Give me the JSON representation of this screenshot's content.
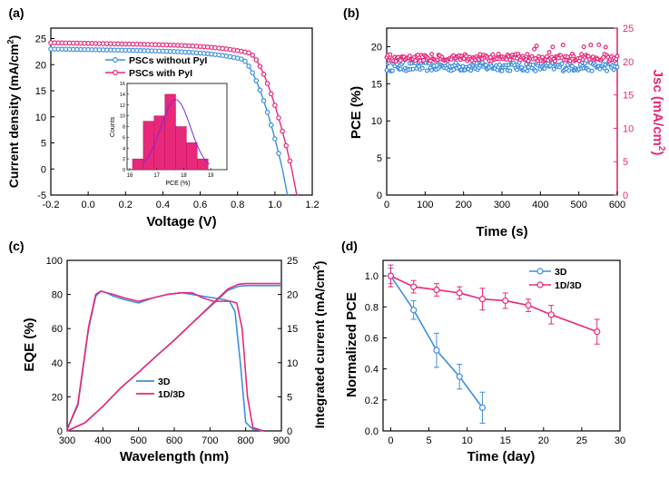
{
  "colors": {
    "blue": "#3d8fe0",
    "pink": "#e8287a",
    "axis": "#000000",
    "bar": "#e8287a",
    "fit": "#7a2be2"
  },
  "chart_data": [
    {
      "panel": "a",
      "panel_label": "(a)",
      "type": "line",
      "xlabel": "Voltage (V)",
      "ylabel": "Current density (mA/cm²)",
      "ylabel_main": "Current density (mA/cm",
      "ylabel_sup": "2",
      "ylabel_end": ")",
      "xlim": [
        -0.2,
        1.2
      ],
      "ylim": [
        -5,
        27
      ],
      "xticks": [
        "-0.2",
        "0.0",
        "0.2",
        "0.4",
        "0.6",
        "0.8",
        "1.0",
        "1.2"
      ],
      "xtick_values": [
        -0.2,
        0.0,
        0.2,
        0.4,
        0.6,
        0.8,
        1.0,
        1.2
      ],
      "yticks": [
        "-5",
        "0",
        "5",
        "10",
        "15",
        "20",
        "25"
      ],
      "ytick_values": [
        -5,
        0,
        5,
        10,
        15,
        20,
        25
      ],
      "series": [
        {
          "name": "PSCs without PyI",
          "color": "#3d8fe0",
          "jsc": 23.0,
          "voc": 1.04,
          "knee": 0.82,
          "step": 0.02
        },
        {
          "name": "PSCs with PyI",
          "color": "#e8287a",
          "jsc": 24.2,
          "voc": 1.09,
          "knee": 0.86,
          "step": 0.02
        }
      ],
      "legend": [
        "PSCs without PyI",
        "PSCs with PyI"
      ],
      "inset": {
        "type": "bar",
        "xlabel": "PCE (%)",
        "ylabel": "Counts",
        "xlim": [
          15.9,
          19.6
        ],
        "ylim": [
          0,
          16
        ],
        "xticks": [
          "16",
          "17",
          "18",
          "19"
        ],
        "xtick_values": [
          16,
          17,
          18,
          19
        ],
        "yticks": [
          "0",
          "2",
          "4",
          "6",
          "8",
          "10",
          "12",
          "14",
          "16"
        ],
        "ytick_values": [
          0,
          2,
          4,
          6,
          8,
          10,
          12,
          14,
          16
        ],
        "bins": [
          16.3,
          16.7,
          17.1,
          17.5,
          17.9,
          18.3,
          18.7,
          19.1
        ],
        "counts": [
          2,
          9,
          10,
          14,
          8,
          5,
          2,
          0
        ],
        "bin_width": 0.4,
        "fit": {
          "mean": 17.7,
          "sd": 0.55,
          "peak": 13
        }
      }
    },
    {
      "panel": "b",
      "panel_label": "(b)",
      "type": "scatter",
      "xlabel": "Time (s)",
      "ylabel": "PCE (%)",
      "y2label": "Jsc (mA/cm²)",
      "y2label_main": "Jsc (mA/cm",
      "y2label_sup": "2",
      "y2label_end": ")",
      "xlim": [
        0,
        600
      ],
      "ylim": [
        0,
        22.5
      ],
      "y2lim": [
        0,
        25
      ],
      "xticks": [
        "0",
        "100",
        "200",
        "300",
        "400",
        "500",
        "600"
      ],
      "xtick_values": [
        0,
        100,
        200,
        300,
        400,
        500,
        600
      ],
      "yticks": [
        "0",
        "5",
        "10",
        "15",
        "20"
      ],
      "ytick_values": [
        0,
        5,
        10,
        15,
        20
      ],
      "y2ticks": [
        "0",
        "5",
        "10",
        "15",
        "20",
        "25"
      ],
      "y2tick_values": [
        0,
        5,
        10,
        15,
        20,
        25
      ],
      "series": [
        {
          "name": "PCE",
          "axis": "left",
          "color": "#3d8fe0",
          "mean": 17.3,
          "spread": 0.6
        },
        {
          "name": "Jsc",
          "axis": "right",
          "color": "#e8287a",
          "mean": 20.6,
          "spread": 0.55
        }
      ]
    },
    {
      "panel": "c",
      "panel_label": "(c)",
      "type": "line",
      "xlabel": "Wavelength (nm)",
      "ylabel": "EQE (%)",
      "y2label": "Integrated current (mA/cm²)",
      "y2label_main": "Integrated current (mA/cm",
      "y2label_sup": "2",
      "y2label_end": ")",
      "xlim": [
        300,
        900
      ],
      "ylim": [
        0,
        100
      ],
      "y2lim": [
        0,
        25
      ],
      "xticks": [
        "300",
        "400",
        "500",
        "600",
        "700",
        "800",
        "900"
      ],
      "xtick_values": [
        300,
        400,
        500,
        600,
        700,
        800,
        900
      ],
      "yticks": [
        "0",
        "20",
        "40",
        "60",
        "80",
        "100"
      ],
      "ytick_values": [
        0,
        20,
        40,
        60,
        80,
        100
      ],
      "y2ticks": [
        "0",
        "5",
        "10",
        "15",
        "20",
        "25"
      ],
      "y2tick_values": [
        0,
        5,
        10,
        15,
        20,
        25
      ],
      "series": [
        {
          "name": "3D",
          "color": "#3d8fe0",
          "eqe_x": [
            300,
            330,
            360,
            380,
            395,
            410,
            430,
            460,
            500,
            540,
            580,
            620,
            650,
            680,
            710,
            740,
            755,
            770,
            785,
            800,
            820,
            850
          ],
          "eqe_y": [
            1,
            15,
            60,
            79,
            82,
            81,
            79,
            77,
            75,
            78,
            80,
            81,
            80,
            79,
            78,
            77,
            76,
            70,
            40,
            5,
            1,
            0
          ],
          "int_x": [
            300,
            350,
            400,
            450,
            500,
            550,
            600,
            650,
            700,
            750,
            780,
            800,
            850,
            900
          ],
          "int_y": [
            0,
            1.2,
            3.6,
            6.3,
            8.6,
            11.0,
            13.3,
            15.8,
            18.2,
            20.6,
            21.2,
            21.3,
            21.3,
            21.3
          ]
        },
        {
          "name": "1D/3D",
          "color": "#e8287a",
          "eqe_x": [
            300,
            330,
            360,
            380,
            395,
            410,
            430,
            460,
            500,
            540,
            580,
            620,
            650,
            680,
            710,
            740,
            760,
            775,
            790,
            805,
            820,
            850
          ],
          "eqe_y": [
            1,
            16,
            61,
            80,
            82,
            81,
            80,
            78,
            76,
            78,
            80,
            81,
            81,
            78,
            76,
            76,
            76,
            75,
            60,
            20,
            2,
            0
          ],
          "int_x": [
            300,
            350,
            400,
            450,
            500,
            550,
            600,
            650,
            700,
            750,
            780,
            800,
            850,
            900
          ],
          "int_y": [
            0,
            1.2,
            3.6,
            6.3,
            8.6,
            11.0,
            13.3,
            15.8,
            18.3,
            20.8,
            21.5,
            21.6,
            21.6,
            21.6
          ]
        }
      ],
      "legend": [
        "3D",
        "1D/3D"
      ]
    },
    {
      "panel": "d",
      "panel_label": "(d)",
      "type": "line",
      "xlabel": "Time (day)",
      "ylabel": "Normalized PCE",
      "xlim": [
        -1,
        30
      ],
      "ylim": [
        0,
        1.1
      ],
      "xticks": [
        "0",
        "5",
        "10",
        "15",
        "20",
        "25",
        "30"
      ],
      "xtick_values": [
        0,
        5,
        10,
        15,
        20,
        25,
        30
      ],
      "yticks": [
        "0.0",
        "0.2",
        "0.4",
        "0.6",
        "0.8",
        "1.0"
      ],
      "ytick_values": [
        0,
        0.2,
        0.4,
        0.6,
        0.8,
        1.0
      ],
      "series": [
        {
          "name": "3D",
          "color": "#3d8fe0",
          "x": [
            0,
            3,
            6,
            9,
            12
          ],
          "y": [
            1.0,
            0.78,
            0.52,
            0.35,
            0.15
          ],
          "err": [
            0.05,
            0.06,
            0.11,
            0.08,
            0.1
          ]
        },
        {
          "name": "1D/3D",
          "color": "#e8287a",
          "x": [
            0,
            3,
            6,
            9,
            12,
            15,
            18,
            21,
            27
          ],
          "y": [
            1.0,
            0.93,
            0.91,
            0.89,
            0.85,
            0.84,
            0.81,
            0.75,
            0.64
          ],
          "err": [
            0.07,
            0.04,
            0.04,
            0.04,
            0.07,
            0.05,
            0.04,
            0.06,
            0.08
          ]
        }
      ],
      "legend": [
        "3D",
        "1D/3D"
      ]
    }
  ]
}
